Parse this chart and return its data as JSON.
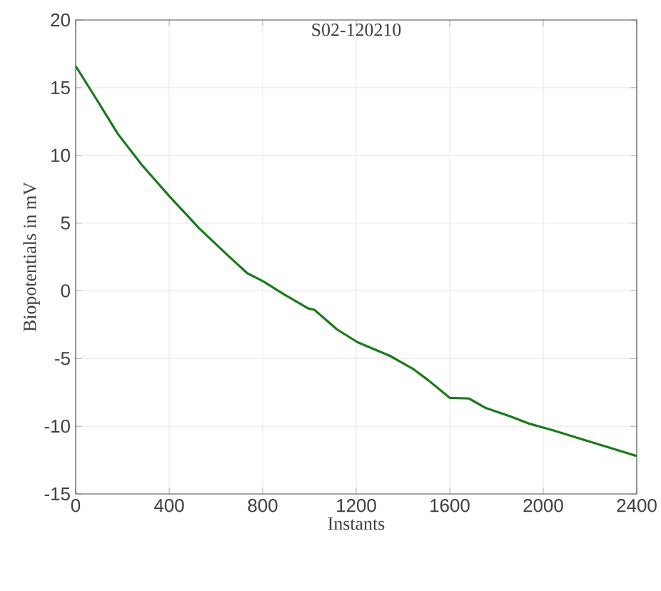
{
  "chart_data": {
    "type": "line",
    "title": "S02-120210",
    "xlabel": "Instants",
    "ylabel": "Biopotentials in mV",
    "x": [
      0,
      98,
      180,
      283,
      400,
      529,
      652,
      734,
      802,
      895,
      995,
      1021,
      1118,
      1206,
      1344,
      1446,
      1508,
      1600,
      1682,
      1754,
      1856,
      1938,
      2041,
      2164,
      2267,
      2400
    ],
    "series": [
      {
        "color": "#1a7a1a",
        "values": [
          16.6,
          13.9,
          11.6,
          9.3,
          7.0,
          4.6,
          2.6,
          1.3,
          0.7,
          -0.3,
          -1.3,
          -1.4,
          -2.85,
          -3.8,
          -4.8,
          -5.8,
          -6.6,
          -7.9,
          -7.95,
          -8.65,
          -9.25,
          -9.8,
          -10.3,
          -10.95,
          -11.5,
          -12.2
        ]
      }
    ],
    "xlim": [
      0,
      2400
    ],
    "ylim": [
      -15,
      20
    ],
    "xticks": [
      0,
      400,
      800,
      1200,
      1600,
      2000,
      2400
    ],
    "yticks": [
      -15,
      -10,
      -5,
      0,
      5,
      10,
      15,
      20
    ],
    "grid": true,
    "marker": "none",
    "line_style": "solid"
  }
}
